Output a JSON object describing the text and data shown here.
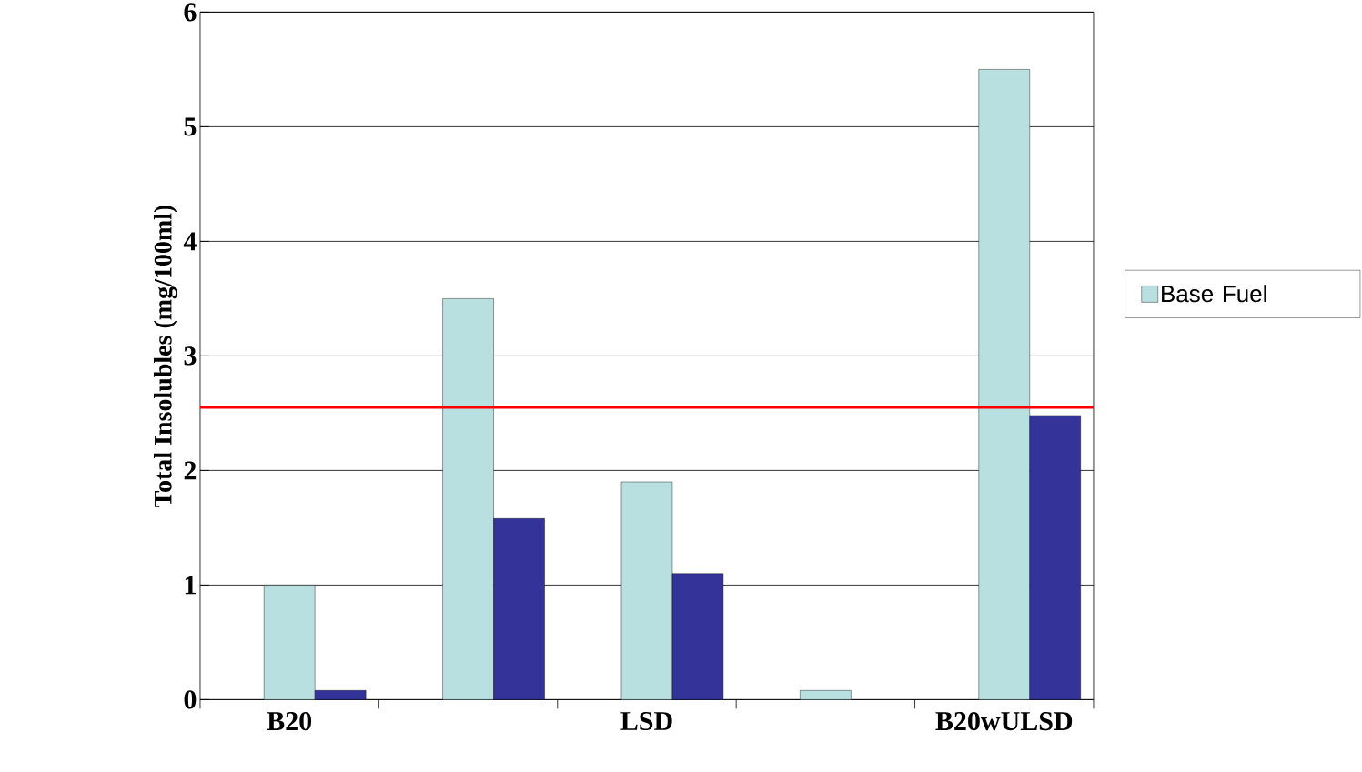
{
  "chart_data": {
    "type": "bar",
    "ylabel": "Total Insolubles (mg/100ml)",
    "categories": [
      "B20",
      null,
      "LSD",
      null,
      "B20wULSD"
    ],
    "series": [
      {
        "name": "Base Fuel",
        "color": "#b9e0e0",
        "values": [
          1.0,
          3.5,
          1.9,
          0.08,
          5.5
        ]
      },
      {
        "color": "#333399",
        "values": [
          0.08,
          1.58,
          1.1,
          null,
          2.48
        ]
      }
    ],
    "ylim": [
      0,
      6
    ],
    "yticks": [
      0,
      1,
      2,
      3,
      4,
      5,
      6
    ],
    "grid": "y",
    "legend": "right",
    "ref_lines": [
      {
        "axis": "y",
        "value": 2.55,
        "color": "#ff0000"
      }
    ]
  }
}
